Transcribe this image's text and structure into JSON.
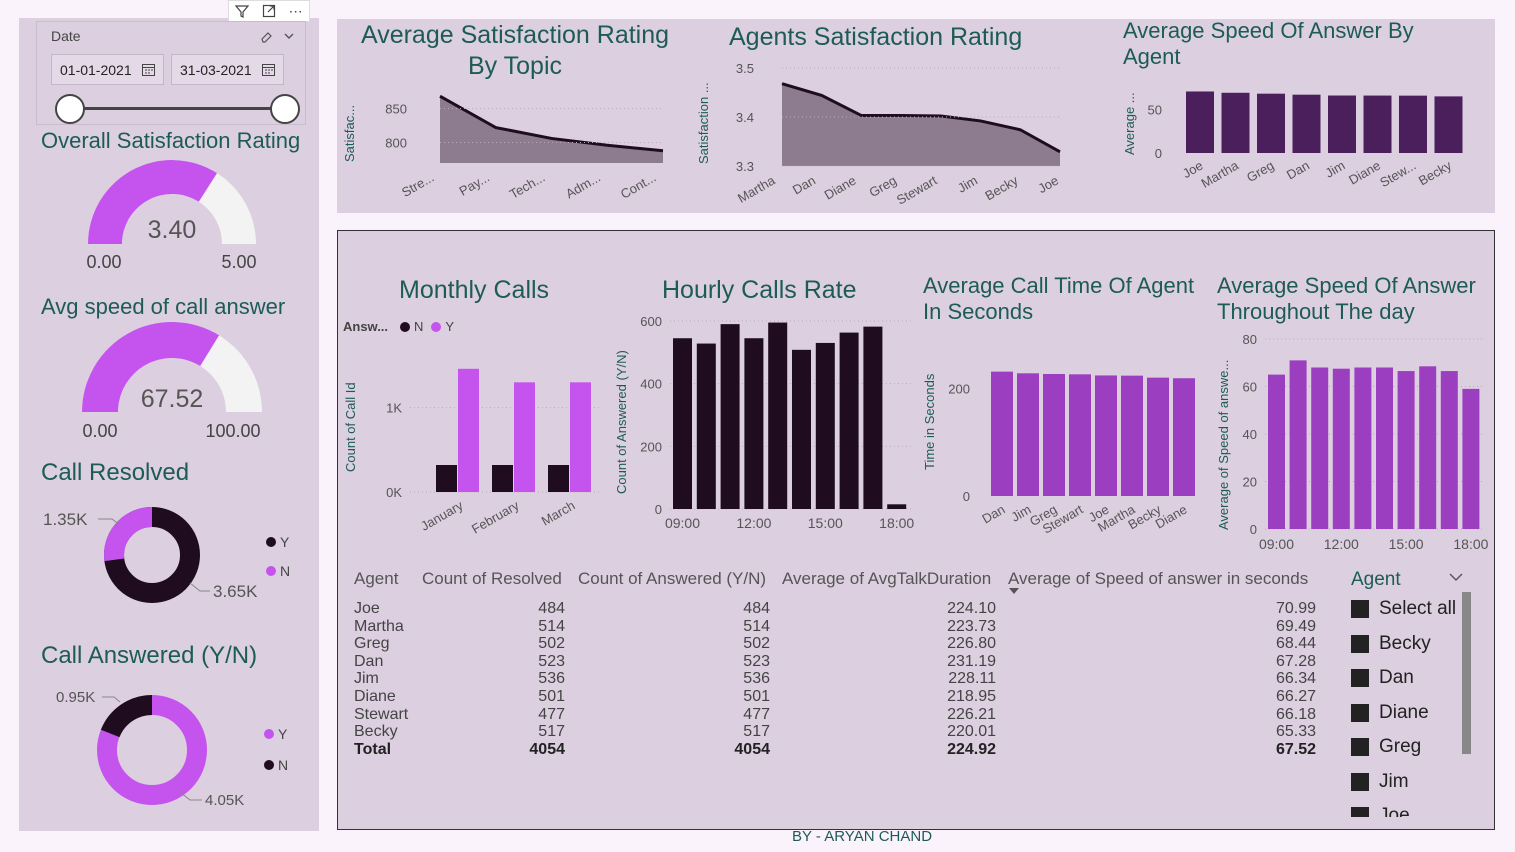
{
  "filter_bar": {
    "icons": [
      "filter-icon",
      "focus-mode-icon",
      "more-options-icon"
    ],
    "more": "⋯"
  },
  "date": {
    "label": "Date",
    "start": "01-01-2021",
    "end": "31-03-2021"
  },
  "overall": {
    "title": "Overall Satisfaction Rating",
    "value": "3.40",
    "min": "0.00",
    "max": "5.00",
    "fraction": 0.68
  },
  "speed": {
    "title": "Avg speed of call answer",
    "value": "67.52",
    "min": "0.00",
    "max": "100.00",
    "fraction": 0.6752
  },
  "resolved": {
    "title": "Call Resolved",
    "label_y": "1.35K",
    "label_n": "3.65K",
    "legend": [
      "Y",
      "N"
    ],
    "y_value": 1350,
    "n_value": 3650
  },
  "answered": {
    "title": "Call Answered (Y/N)",
    "label_n": "0.95K",
    "label_y": "4.05K",
    "legend": [
      "Y",
      "N"
    ],
    "y_value": 4050,
    "n_value": 950
  },
  "sat_topic": {
    "title": "Average Satisfaction Rating By Topic",
    "ylabel": "Satisfac...",
    "yticks": [
      "850",
      "800"
    ],
    "categories": [
      "Stre...",
      "Pay...",
      "Tech...",
      "Adm...",
      "Cont..."
    ]
  },
  "agent_sat": {
    "title": "Agents Satisfaction Rating",
    "ylabel": "Satisfaction ...",
    "yticks": [
      "3.5",
      "3.4",
      "3.3"
    ],
    "categories": [
      "Martha",
      "Dan",
      "Diane",
      "Greg",
      "Stewart",
      "Jim",
      "Becky",
      "Joe"
    ]
  },
  "speed_agent": {
    "title": "Average Speed Of Answer By Agent",
    "ylabel": "Average ...",
    "yticks": [
      "50",
      "0"
    ],
    "categories": [
      "Joe",
      "Martha",
      "Greg",
      "Dan",
      "Jim",
      "Diane",
      "Stew...",
      "Becky"
    ]
  },
  "monthly": {
    "title": "Monthly Calls",
    "legend_title": "Answ...",
    "legend": [
      "N",
      "Y"
    ],
    "ylabel": "Count of Call Id",
    "yticks": [
      "1K",
      "0K"
    ],
    "categories": [
      "January",
      "February",
      "March"
    ]
  },
  "hourly": {
    "title": "Hourly Calls Rate",
    "ylabel": "Count of Answered (Y/N)",
    "yticks": [
      "600",
      "400",
      "200",
      "0"
    ],
    "xticks": [
      "09:00",
      "12:00",
      "15:00",
      "18:00"
    ]
  },
  "calltime": {
    "title": "Average Call Time Of Agent In Seconds",
    "ylabel": "Time in Seconds",
    "yticks": [
      "200",
      "0"
    ],
    "categories": [
      "Dan",
      "Jim",
      "Greg",
      "Stewart",
      "Joe",
      "Martha",
      "Becky",
      "Diane"
    ]
  },
  "speed_day": {
    "title": "Average Speed Of Answer Throughout The day",
    "ylabel": "Average of Speed of answe...",
    "yticks": [
      "80",
      "60",
      "40",
      "20",
      "0"
    ],
    "xticks": [
      "09:00",
      "12:00",
      "15:00",
      "18:00"
    ]
  },
  "table": {
    "headers": [
      "Agent",
      "Count of Resolved",
      "Count of Answered (Y/N)",
      "Average of AvgTalkDuration",
      "Average of Speed of answer in seconds"
    ],
    "rows": [
      [
        "Joe",
        "484",
        "484",
        "224.10",
        "70.99"
      ],
      [
        "Martha",
        "514",
        "514",
        "223.73",
        "69.49"
      ],
      [
        "Greg",
        "502",
        "502",
        "226.80",
        "68.44"
      ],
      [
        "Dan",
        "523",
        "523",
        "231.19",
        "67.28"
      ],
      [
        "Jim",
        "536",
        "536",
        "228.11",
        "66.34"
      ],
      [
        "Diane",
        "501",
        "501",
        "218.95",
        "66.27"
      ],
      [
        "Stewart",
        "477",
        "477",
        "226.21",
        "66.18"
      ],
      [
        "Becky",
        "517",
        "517",
        "220.01",
        "65.33"
      ]
    ],
    "total": [
      "Total",
      "4054",
      "4054",
      "224.92",
      "67.52"
    ]
  },
  "slicer": {
    "title": "Agent",
    "items": [
      "Select all",
      "Becky",
      "Dan",
      "Diane",
      "Greg",
      "Jim",
      "Joe"
    ]
  },
  "footer": "BY - ARYAN  CHAND",
  "colors": {
    "accent": "#c553ee",
    "dark": "#1f0d1f",
    "bar_purple": "#9b3fc0",
    "deep_purple": "#4b1f5c",
    "teal": "#1d5b57",
    "area": "#8d7c8f"
  },
  "chart_data": [
    {
      "type": "area",
      "title": "Average Satisfaction Rating By Topic",
      "ylabel": "Satisfac...",
      "categories": [
        "Stre...",
        "Pay...",
        "Tech...",
        "Adm...",
        "Cont..."
      ],
      "values": [
        868,
        822,
        806,
        796,
        788
      ],
      "ylim": [
        770,
        880
      ]
    },
    {
      "type": "area",
      "title": "Agents Satisfaction Rating",
      "ylabel": "Satisfaction ...",
      "categories": [
        "Martha",
        "Dan",
        "Diane",
        "Greg",
        "Stewart",
        "Jim",
        "Becky",
        "Joe"
      ],
      "values": [
        3.468,
        3.444,
        3.403,
        3.403,
        3.402,
        3.392,
        3.374,
        3.329
      ],
      "ylim": [
        3.3,
        3.5
      ]
    },
    {
      "type": "bar",
      "title": "Average Speed Of Answer By Agent",
      "ylabel": "Average ...",
      "categories": [
        "Joe",
        "Martha",
        "Greg",
        "Dan",
        "Jim",
        "Diane",
        "Stew...",
        "Becky"
      ],
      "values": [
        70.99,
        69.49,
        68.44,
        67.28,
        66.34,
        66.27,
        66.18,
        65.33
      ],
      "ylim": [
        0,
        75
      ]
    },
    {
      "type": "bar",
      "title": "Monthly Calls",
      "ylabel": "Count of Call Id",
      "categories": [
        "January",
        "February",
        "March"
      ],
      "series": [
        {
          "name": "N",
          "values": [
            320,
            320,
            320
          ]
        },
        {
          "name": "Y",
          "values": [
            1460,
            1300,
            1300
          ]
        }
      ],
      "ylim": [
        0,
        1600
      ]
    },
    {
      "type": "bar",
      "title": "Hourly Calls Rate",
      "ylabel": "Count of Answered (Y/N)",
      "x": [
        "09:00",
        "10:00",
        "11:00",
        "12:00",
        "13:00",
        "14:00",
        "15:00",
        "16:00",
        "17:00",
        "18:00"
      ],
      "values": [
        545,
        528,
        590,
        545,
        595,
        508,
        530,
        563,
        582,
        15
      ],
      "ylim": [
        0,
        600
      ]
    },
    {
      "type": "bar",
      "title": "Average Call Time Of Agent In Seconds",
      "ylabel": "Time in Seconds",
      "categories": [
        "Dan",
        "Jim",
        "Greg",
        "Stewart",
        "Joe",
        "Martha",
        "Becky",
        "Diane"
      ],
      "values": [
        231.19,
        228.11,
        226.8,
        226.21,
        224.1,
        223.73,
        220.01,
        218.95
      ],
      "ylim": [
        0,
        290
      ]
    },
    {
      "type": "bar",
      "title": "Average Speed Of Answer Throughout The day",
      "ylabel": "Average of Speed of answe...",
      "x": [
        "09:00",
        "10:00",
        "11:00",
        "12:00",
        "13:00",
        "14:00",
        "15:00",
        "16:00",
        "17:00",
        "18:00"
      ],
      "values": [
        65,
        71,
        68,
        67.5,
        68,
        68,
        66.5,
        68.5,
        66.5,
        59
      ],
      "ylim": [
        0,
        80
      ]
    }
  ]
}
